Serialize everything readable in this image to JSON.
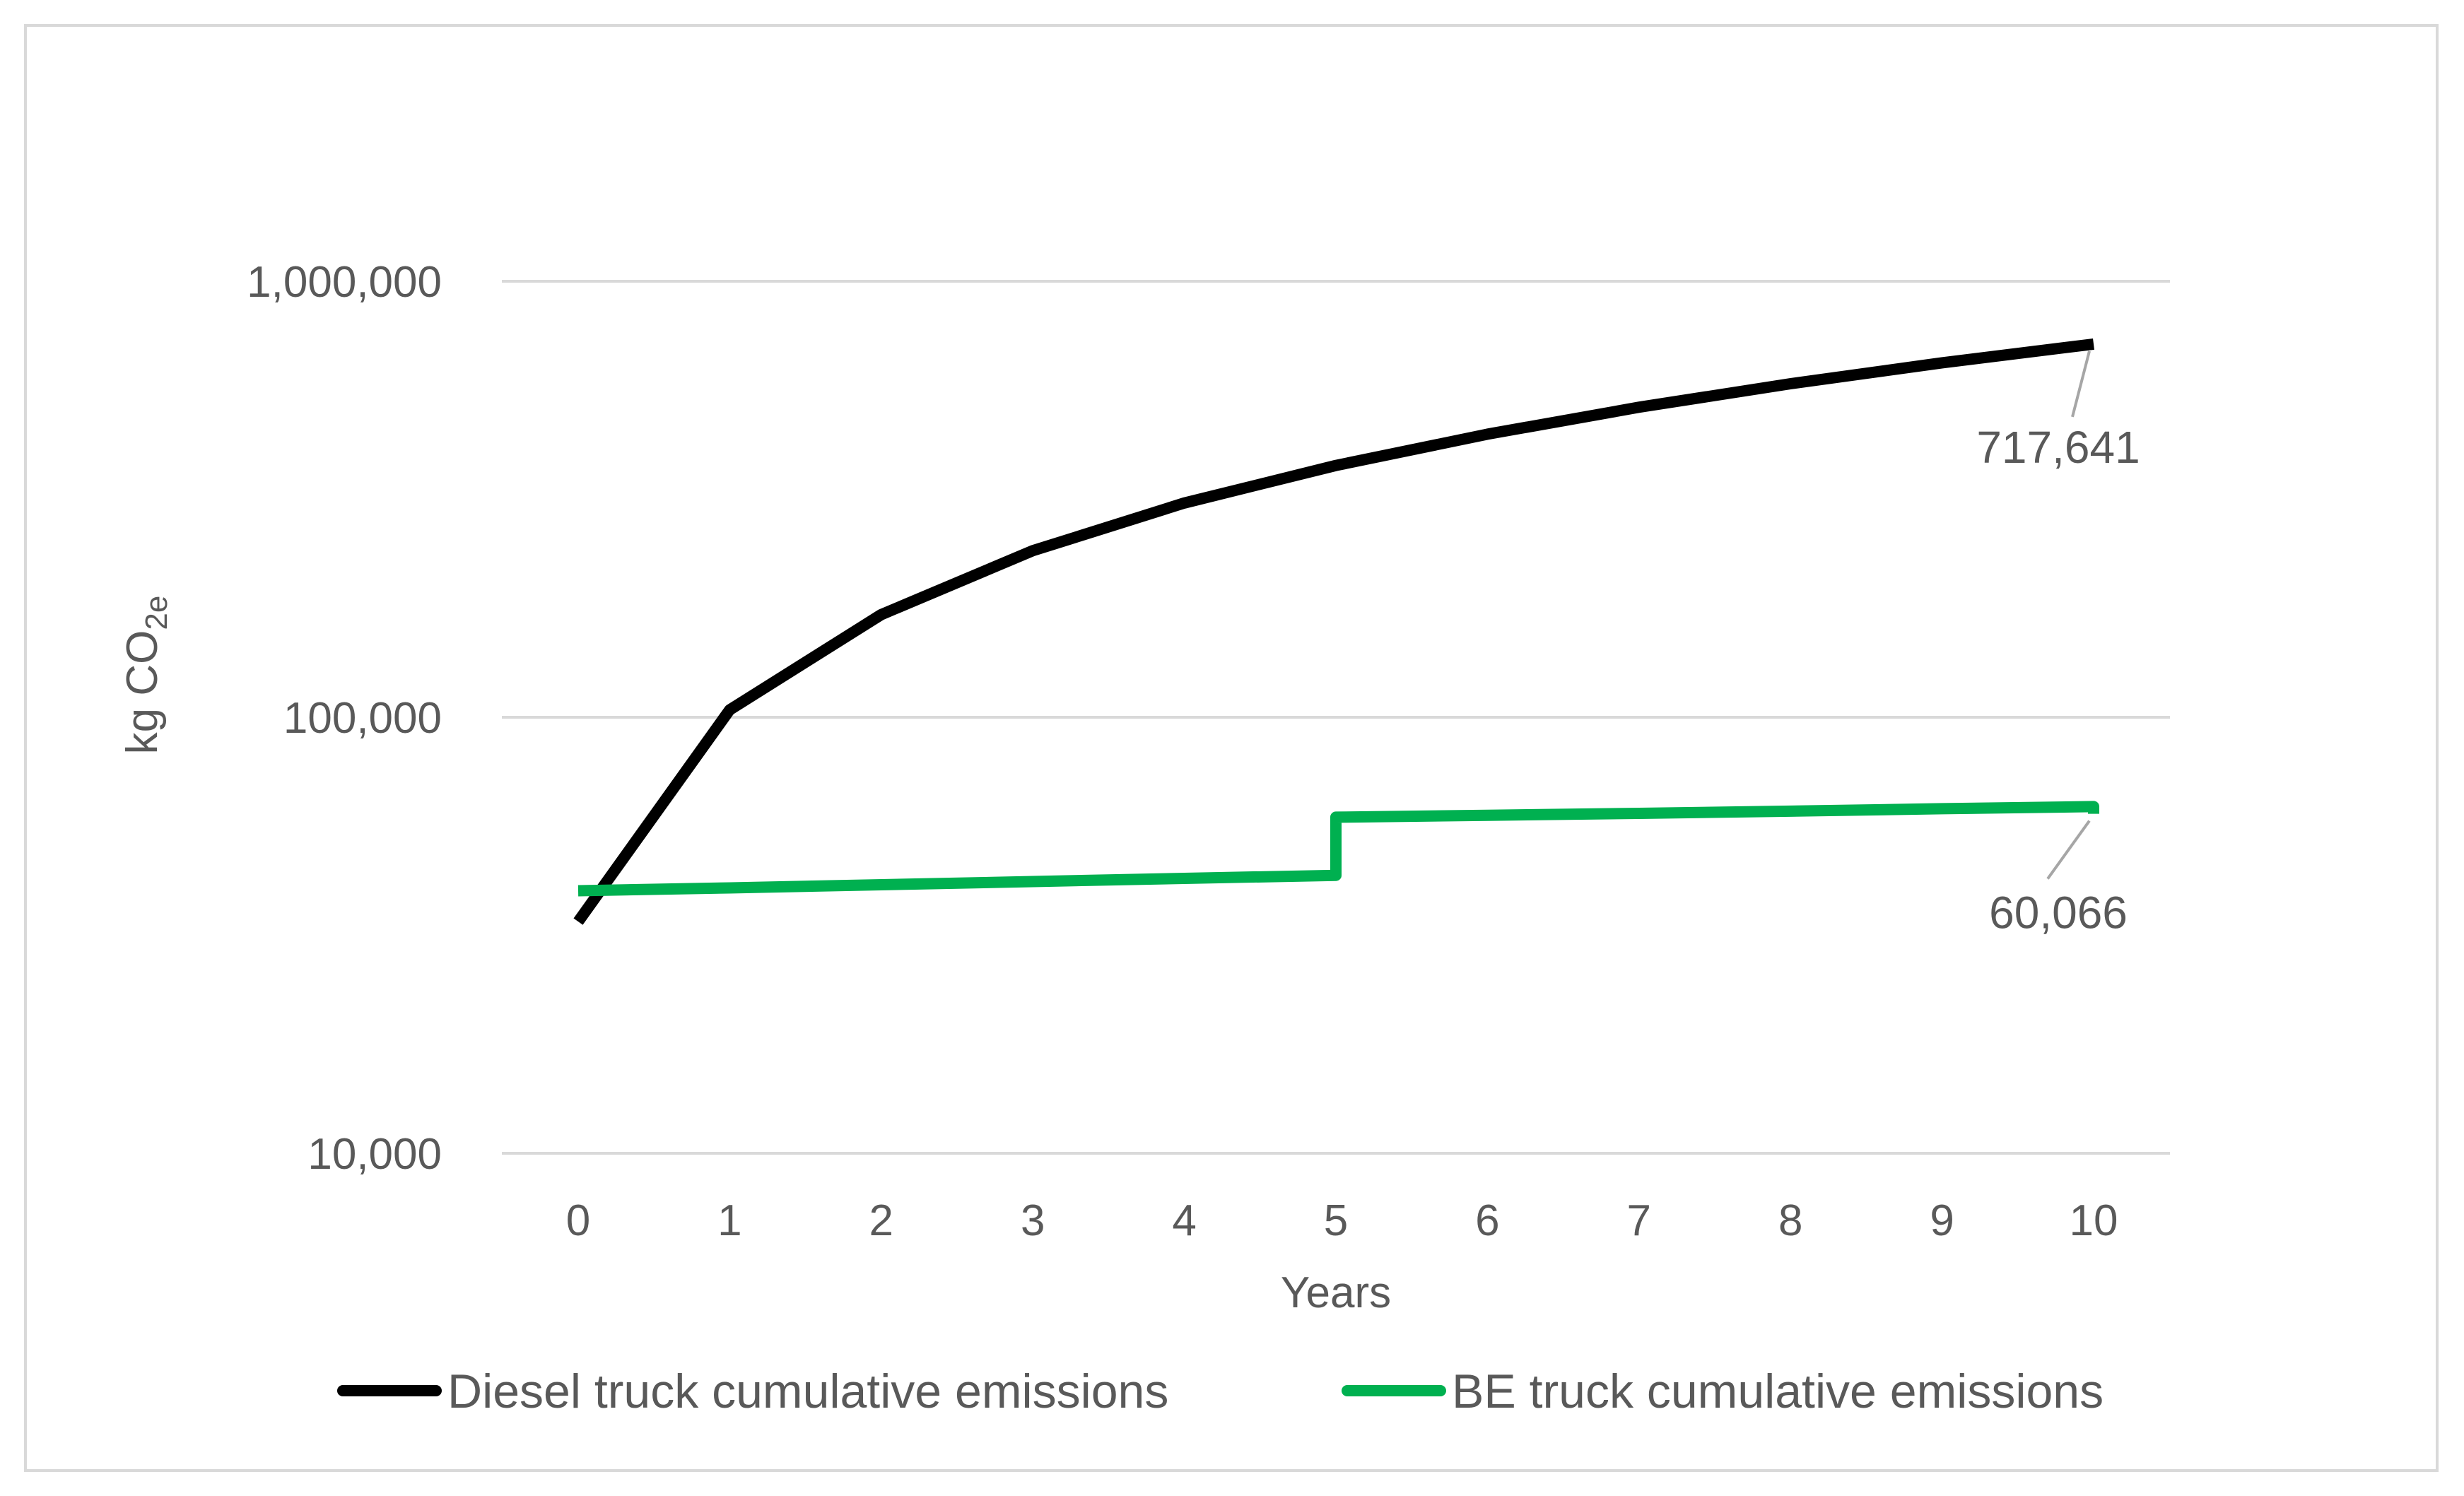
{
  "chart_data": {
    "type": "line",
    "title": "",
    "xlabel": "Years",
    "ylabel_main": "kg CO",
    "ylabel_sub": "2e",
    "y_scale": "log",
    "ylim": [
      10000,
      1000000
    ],
    "xlim": [
      0,
      10
    ],
    "y_ticks": [
      {
        "value": 10000,
        "label": "10,000"
      },
      {
        "value": 100000,
        "label": "100,000"
      },
      {
        "value": 1000000,
        "label": "1,000,000"
      }
    ],
    "x_ticks": [
      "0",
      "1",
      "2",
      "3",
      "4",
      "5",
      "6",
      "7",
      "8",
      "9",
      "10"
    ],
    "grid": "horizontal",
    "legend_position": "bottom",
    "series": [
      {
        "name": "Diesel truck cumulative emissions",
        "color": "#000000",
        "points": [
          [
            0,
            34000
          ],
          [
            1,
            104000
          ],
          [
            2,
            172000
          ],
          [
            3,
            241000
          ],
          [
            4,
            310000
          ],
          [
            5,
            378000
          ],
          [
            6,
            446000
          ],
          [
            7,
            514000
          ],
          [
            8,
            582000
          ],
          [
            9,
            650000
          ],
          [
            10,
            717641
          ]
        ]
      },
      {
        "name": "BE truck cumulative emissions",
        "color": "#00b050",
        "points": [
          [
            0,
            40000
          ],
          [
            1,
            40600
          ],
          [
            2,
            41300
          ],
          [
            3,
            42000
          ],
          [
            4,
            42700
          ],
          [
            5,
            43400
          ],
          [
            5,
            59000
          ],
          [
            6,
            59600
          ],
          [
            7,
            60200
          ],
          [
            8,
            60900
          ],
          [
            9,
            61700
          ],
          [
            10,
            62400
          ],
          [
            10,
            60066
          ]
        ]
      }
    ],
    "annotations": [
      {
        "series": 0,
        "label": "717,641",
        "x": 10,
        "y": 717641
      },
      {
        "series": 1,
        "label": "60,066",
        "x": 10,
        "y": 60066
      }
    ]
  }
}
